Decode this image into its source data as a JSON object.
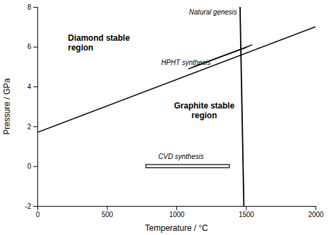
{
  "chart_data": {
    "type": "line",
    "xlabel": "Temperature / °C",
    "ylabel": "Pressure / GPa",
    "xlim": [
      0,
      2000
    ],
    "ylim": [
      -2,
      8
    ],
    "xticks": [
      0,
      500,
      1000,
      1500,
      2000
    ],
    "yticks": [
      -2,
      0,
      2,
      4,
      6,
      8
    ],
    "line": {
      "x": [
        0,
        2000
      ],
      "y": [
        1.7,
        7.0
      ],
      "color": "black"
    },
    "annotations": [
      {
        "text": "Diamond stable\nregion",
        "x": 220,
        "y": 6.2
      },
      {
        "text": "Graphite stable\nregion",
        "x": 1200,
        "y": 2.8
      }
    ],
    "regions": [
      {
        "label": "Natural genesis",
        "shape": "ellipse",
        "cx": 1460,
        "cy": 6.95,
        "width": 160,
        "height": 1.1,
        "angle": -20,
        "label_x": 1090,
        "label_y": 7.55,
        "color": "black"
      },
      {
        "label": "HPHT synthesis",
        "shape": "polygon",
        "x": [
          1085,
          1490,
          1545,
          1140
        ],
        "y": [
          4.88,
          5.93,
          6.1,
          5.05
        ],
        "label_x": 890,
        "label_y": 5.35,
        "color": "black"
      },
      {
        "label": "CVD synthesis",
        "shape": "rectangle",
        "x0": 780,
        "y0": -0.08,
        "width": 600,
        "height": 0.16,
        "label_x": 870,
        "label_y": 0.28,
        "color": "black"
      }
    ]
  }
}
